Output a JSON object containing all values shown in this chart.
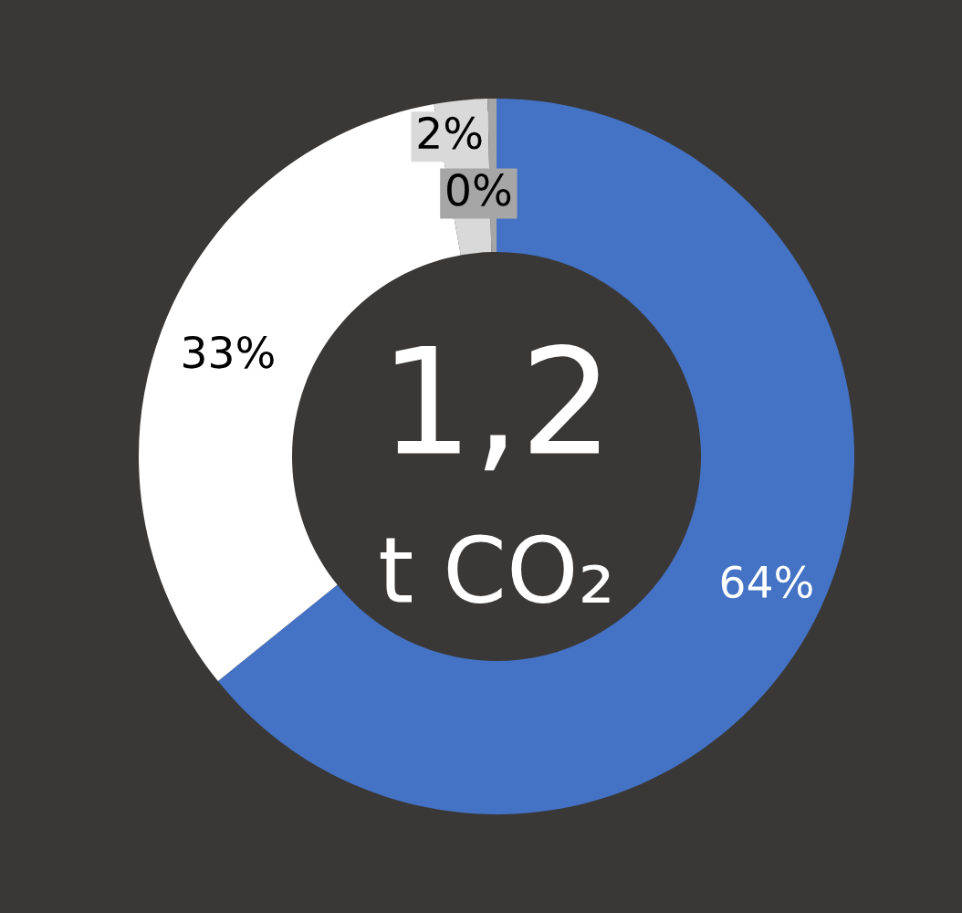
{
  "chart_data": {
    "type": "donut",
    "categories": [
      null,
      null,
      null,
      null
    ],
    "values": [
      64.2,
      33.0,
      2.4,
      0.4
    ],
    "value_labels": [
      "64%",
      "33%",
      "2%",
      "0%"
    ],
    "colors": [
      "#4472c4",
      "#ffffff",
      "#d9d9d9",
      "#a6a6a6"
    ],
    "annotations": [
      "1,2",
      "t CO₂"
    ],
    "legend": false
  }
}
